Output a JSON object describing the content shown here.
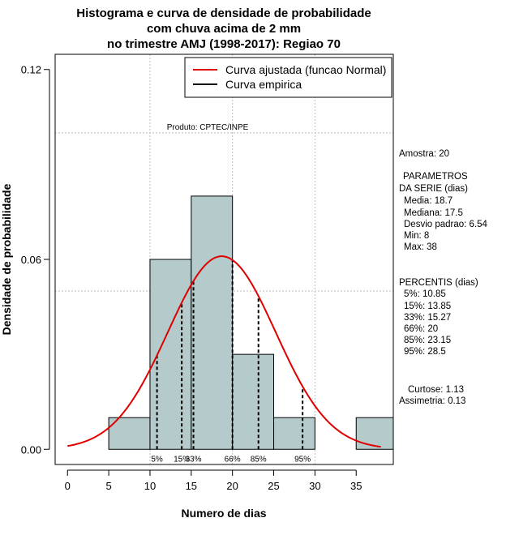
{
  "chart_data": {
    "type": "bar",
    "title_lines": [
      "Histograma e curva de densidade de probabilidade",
      "com chuva acima de 2 mm",
      "no trimestre AMJ (1998-2017): Regiao 70"
    ],
    "xlabel": "Numero de dias",
    "ylabel": "Densidade de probabilidade",
    "xlim": [
      -1.5,
      39.5
    ],
    "ylim": [
      -0.0048,
      0.1248
    ],
    "x_ticks": [
      0,
      5,
      10,
      15,
      20,
      25,
      30,
      35
    ],
    "y_ticks": [
      0.0,
      0.06,
      0.12
    ],
    "y_tick_labels": [
      "0.00",
      "0.06",
      "0.12"
    ],
    "bins": [
      {
        "x0": 5,
        "x1": 10,
        "density": 0.01
      },
      {
        "x0": 10,
        "x1": 15,
        "density": 0.06
      },
      {
        "x0": 15,
        "x1": 20,
        "density": 0.08
      },
      {
        "x0": 20,
        "x1": 25,
        "density": 0.03
      },
      {
        "x0": 25,
        "x1": 30,
        "density": 0.01
      },
      {
        "x0": 30,
        "x1": 35,
        "density": 0.0
      },
      {
        "x0": 35,
        "x1": 40,
        "density": 0.01
      }
    ],
    "normal_fit": {
      "mean": 18.7,
      "sd": 6.54,
      "x_from": 0,
      "x_to": 38
    },
    "percentile_lines": [
      {
        "label": "5%",
        "x": 10.85
      },
      {
        "label": "15%",
        "x": 13.85
      },
      {
        "label": "33%",
        "x": 15.27
      },
      {
        "label": "66%",
        "x": 20
      },
      {
        "label": "85%",
        "x": 23.15
      },
      {
        "label": "95%",
        "x": 28.5
      }
    ],
    "grid_y": [
      0.05,
      0.1
    ],
    "grid_x": [
      10,
      20,
      30
    ],
    "legend": {
      "position": "top-right",
      "entries": [
        {
          "label": "Curva ajustada (funcao Normal)",
          "color": "#e00000"
        },
        {
          "label": "Curva empirica",
          "color": "#000000"
        }
      ]
    },
    "annotation": "Produto: CPTEC/INPE",
    "colors": {
      "bar_fill": "#b5cbcb",
      "bar_stroke": "#000000",
      "curve": "#e00000"
    }
  },
  "side_panel": {
    "sample": "Amostra: 20",
    "params_title_1": "PARAMETROS",
    "params_title_2": "DA SERIE (dias)",
    "media": "Media: 18.7",
    "mediana": "Mediana: 17.5",
    "desvio": "Desvio padrao: 6.54",
    "min": "Min: 8",
    "max": "Max: 38",
    "percentis_title": "PERCENTIS (dias)",
    "p5": "5%: 10.85",
    "p15": "15%: 13.85",
    "p33": "33%: 15.27",
    "p66": "66%: 20",
    "p85": "85%: 23.15",
    "p95": "95%: 28.5",
    "curtose": "Curtose: 1.13",
    "assimetria": "Assimetria: 0.13"
  }
}
